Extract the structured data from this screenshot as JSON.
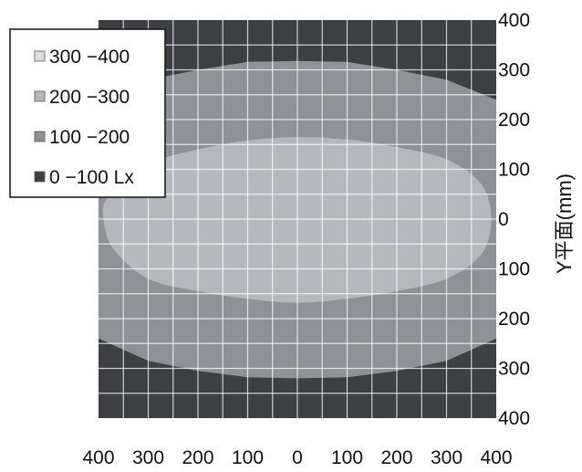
{
  "chart_data": {
    "type": "heatmap",
    "title": "",
    "xlabel": "",
    "ylabel": "Y平面(mm)",
    "x_ticks": [
      "400",
      "300",
      "200",
      "100",
      "0",
      "100",
      "200",
      "300",
      "400"
    ],
    "y_ticks": [
      "400",
      "300",
      "200",
      "100",
      "0",
      "100",
      "200",
      "300",
      "400"
    ],
    "x_range": [
      -400,
      400
    ],
    "y_range": [
      -400,
      400
    ],
    "grid": true,
    "legend_position": "top-left",
    "legend": [
      {
        "label": "300 −400",
        "color": "#dcdee0"
      },
      {
        "label": "200 −300",
        "color": "#b4b7bb"
      },
      {
        "label": "100 −200",
        "color": "#8e9196"
      },
      {
        "label": "0 −100 Lx",
        "color": "#3d3f42"
      }
    ],
    "background_band": {
      "range": "0 −100 Lx",
      "color": "#3d3f42"
    },
    "regions": [
      {
        "range": "100 −200",
        "color": "#8e9196",
        "boundary_top": [
          [
            -400,
            240
          ],
          [
            -300,
            280
          ],
          [
            -200,
            300
          ],
          [
            -100,
            316
          ],
          [
            0,
            318
          ],
          [
            100,
            316
          ],
          [
            200,
            300
          ],
          [
            300,
            280
          ],
          [
            400,
            240
          ]
        ],
        "boundary_bottom": [
          [
            -400,
            -240
          ],
          [
            -300,
            -285
          ],
          [
            -200,
            -305
          ],
          [
            -100,
            -318
          ],
          [
            0,
            -320
          ],
          [
            100,
            -318
          ],
          [
            200,
            -305
          ],
          [
            300,
            -285
          ],
          [
            400,
            -240
          ]
        ]
      },
      {
        "range": "200 −300",
        "color": "#b4b7bb",
        "boundary": [
          [
            -390,
            0
          ],
          [
            -380,
            45
          ],
          [
            -300,
            110
          ],
          [
            -200,
            140
          ],
          [
            -100,
            158
          ],
          [
            0,
            165
          ],
          [
            100,
            160
          ],
          [
            200,
            145
          ],
          [
            300,
            120
          ],
          [
            370,
            70
          ],
          [
            390,
            0
          ],
          [
            370,
            -70
          ],
          [
            300,
            -120
          ],
          [
            200,
            -145
          ],
          [
            100,
            -160
          ],
          [
            0,
            -168
          ],
          [
            -100,
            -160
          ],
          [
            -200,
            -145
          ],
          [
            -300,
            -120
          ],
          [
            -370,
            -60
          ]
        ]
      }
    ]
  }
}
